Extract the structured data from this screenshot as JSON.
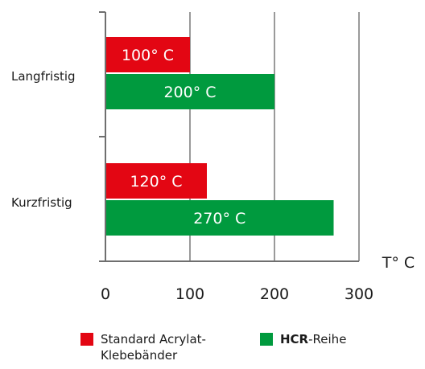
{
  "chart_data": {
    "type": "bar",
    "orientation": "horizontal",
    "categories": [
      "Langfristig",
      "Kurzfristig"
    ],
    "series": [
      {
        "name": "Standard Acrylat-Klebebänder",
        "values": [
          100,
          120
        ],
        "labels": [
          "100° C",
          "120° C"
        ],
        "color": "#e30613"
      },
      {
        "name": "HCR-Reihe",
        "values": [
          200,
          270
        ],
        "labels": [
          "200° C",
          "270° C"
        ],
        "color": "#009a3e"
      }
    ],
    "xlabel": "T° C",
    "xlim": [
      0,
      300
    ],
    "xticks": [
      0,
      100,
      200,
      300
    ],
    "xtick_labels": [
      "0",
      "100",
      "200",
      "300"
    ],
    "grid": "vertical",
    "legend_position": "bottom"
  },
  "legend": {
    "items": [
      {
        "bold": "",
        "text_lines": [
          "Standard Acrylat-",
          "Klebebänder"
        ],
        "color": "#e30613"
      },
      {
        "bold": "HCR",
        "text_lines": [
          "-Reihe"
        ],
        "color": "#009a3e"
      }
    ]
  }
}
